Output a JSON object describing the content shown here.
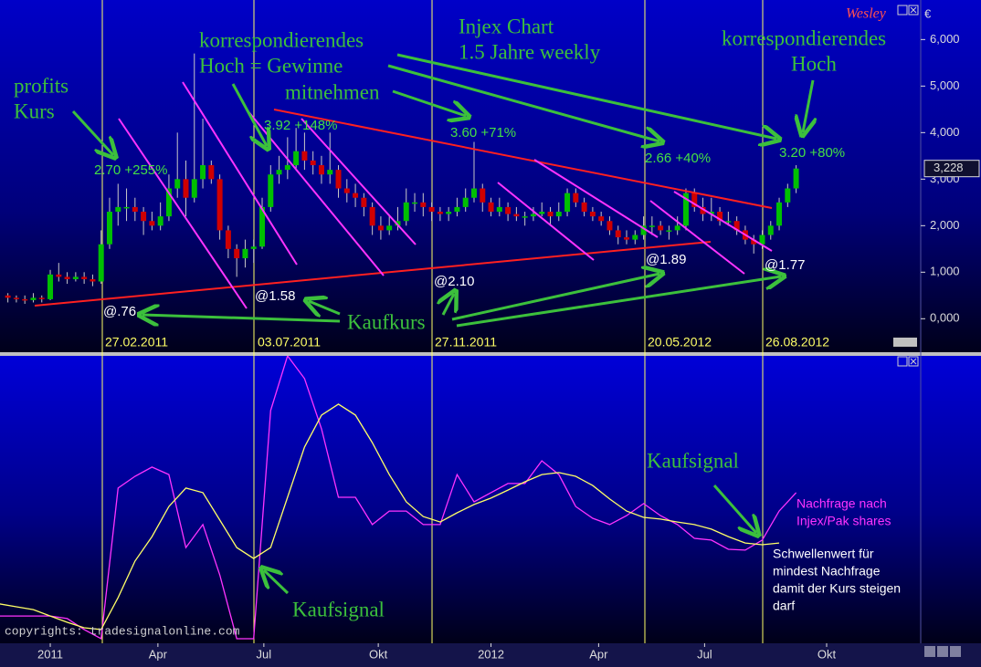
{
  "chart_data": [
    {
      "type": "candlestick",
      "title": [
        "Injex Chart",
        "1.5 Jahre weekly"
      ],
      "watermark": "Wesley",
      "currency": "€",
      "up_color": "#00c000",
      "down_color": "#d00000",
      "wick_color": "#c8c8c8",
      "x": [
        -5,
        -4,
        -3,
        -2,
        -1,
        0,
        1,
        2,
        3,
        4,
        5,
        6,
        7,
        8,
        9,
        10,
        11,
        12,
        13,
        14,
        15,
        16,
        17,
        18,
        19,
        20,
        21,
        22,
        23,
        24,
        25,
        26,
        27,
        28,
        29,
        30,
        31,
        32,
        33,
        34,
        35,
        36,
        37,
        38,
        39,
        40,
        41,
        42,
        43,
        44,
        45,
        46,
        47,
        48,
        49,
        50,
        51,
        52,
        53,
        54,
        55,
        56,
        57,
        58,
        59,
        60,
        61,
        62,
        63,
        64,
        65,
        66,
        67,
        68,
        69,
        70,
        71,
        72,
        73,
        74,
        75,
        76,
        77,
        78,
        79,
        80,
        81,
        82,
        83,
        84,
        85,
        86,
        87,
        88
      ],
      "candles": [
        [
          0.5,
          0.55,
          0.35,
          0.45
        ],
        [
          0.45,
          0.5,
          0.35,
          0.42
        ],
        [
          0.42,
          0.5,
          0.32,
          0.4
        ],
        [
          0.4,
          0.55,
          0.35,
          0.45
        ],
        [
          0.45,
          0.5,
          0.35,
          0.42
        ],
        [
          0.42,
          1.05,
          0.4,
          0.95
        ],
        [
          0.95,
          1.2,
          0.8,
          0.9
        ],
        [
          0.9,
          1.0,
          0.75,
          0.85
        ],
        [
          0.85,
          1.0,
          0.8,
          0.9
        ],
        [
          0.9,
          1.0,
          0.75,
          0.85
        ],
        [
          0.85,
          0.95,
          0.7,
          0.8
        ],
        [
          0.8,
          1.9,
          0.75,
          1.6
        ],
        [
          1.6,
          2.6,
          1.5,
          2.3
        ],
        [
          2.3,
          2.9,
          2.0,
          2.4
        ],
        [
          2.4,
          2.8,
          2.1,
          2.4
        ],
        [
          2.4,
          2.6,
          2.1,
          2.3
        ],
        [
          2.3,
          2.4,
          1.8,
          2.1
        ],
        [
          2.1,
          2.3,
          1.9,
          2.0
        ],
        [
          2.0,
          2.5,
          1.9,
          2.2
        ],
        [
          2.2,
          3.1,
          2.1,
          2.8
        ],
        [
          2.8,
          4.0,
          2.6,
          3.0
        ],
        [
          3.0,
          3.4,
          2.2,
          2.6
        ],
        [
          2.6,
          5.7,
          2.5,
          3.0
        ],
        [
          3.0,
          4.3,
          2.8,
          3.3
        ],
        [
          3.3,
          3.4,
          2.9,
          3.0
        ],
        [
          3.0,
          3.1,
          1.7,
          1.9
        ],
        [
          1.9,
          2.0,
          1.3,
          1.5
        ],
        [
          1.5,
          1.6,
          0.9,
          1.3
        ],
        [
          1.3,
          1.7,
          1.1,
          1.5
        ],
        [
          1.5,
          1.7,
          1.2,
          1.55
        ],
        [
          1.55,
          2.6,
          1.5,
          2.4
        ],
        [
          2.4,
          3.3,
          2.3,
          3.1
        ],
        [
          3.1,
          3.5,
          2.9,
          3.2
        ],
        [
          3.2,
          3.9,
          3.0,
          3.3
        ],
        [
          3.3,
          4.1,
          3.2,
          3.6
        ],
        [
          3.6,
          4.0,
          3.2,
          3.4
        ],
        [
          3.4,
          3.6,
          3.1,
          3.3
        ],
        [
          3.3,
          3.5,
          2.9,
          3.1
        ],
        [
          3.1,
          4.0,
          2.9,
          3.2
        ],
        [
          3.2,
          3.3,
          2.6,
          2.8
        ],
        [
          2.8,
          3.0,
          2.5,
          2.7
        ],
        [
          2.7,
          2.9,
          2.4,
          2.6
        ],
        [
          2.6,
          2.7,
          2.2,
          2.4
        ],
        [
          2.4,
          2.5,
          1.8,
          2.0
        ],
        [
          2.0,
          2.2,
          1.7,
          1.9
        ],
        [
          1.9,
          2.2,
          1.8,
          2.0
        ],
        [
          2.0,
          2.4,
          1.9,
          2.1
        ],
        [
          2.1,
          2.8,
          2.0,
          2.5
        ],
        [
          2.5,
          2.7,
          2.3,
          2.5
        ],
        [
          2.5,
          2.7,
          2.2,
          2.4
        ],
        [
          2.4,
          2.5,
          2.1,
          2.3
        ],
        [
          2.3,
          2.4,
          2.1,
          2.25
        ],
        [
          2.25,
          2.4,
          2.1,
          2.3
        ],
        [
          2.3,
          2.6,
          2.2,
          2.4
        ],
        [
          2.4,
          2.8,
          2.3,
          2.6
        ],
        [
          2.6,
          3.8,
          2.5,
          2.8
        ],
        [
          2.8,
          2.9,
          2.3,
          2.5
        ],
        [
          2.5,
          2.6,
          2.2,
          2.3
        ],
        [
          2.3,
          2.6,
          2.2,
          2.4
        ],
        [
          2.4,
          2.5,
          2.1,
          2.25
        ],
        [
          2.25,
          2.4,
          2.1,
          2.2
        ],
        [
          2.2,
          2.3,
          2.0,
          2.2
        ],
        [
          2.2,
          2.4,
          2.1,
          2.25
        ],
        [
          2.25,
          2.5,
          2.2,
          2.3
        ],
        [
          2.3,
          2.4,
          2.0,
          2.2
        ],
        [
          2.2,
          2.5,
          2.1,
          2.3
        ],
        [
          2.3,
          2.8,
          2.2,
          2.7
        ],
        [
          2.7,
          2.8,
          2.4,
          2.5
        ],
        [
          2.5,
          2.6,
          2.2,
          2.3
        ],
        [
          2.3,
          2.4,
          2.1,
          2.2
        ],
        [
          2.2,
          2.3,
          2.0,
          2.1
        ],
        [
          2.1,
          2.2,
          1.8,
          1.9
        ],
        [
          1.9,
          2.0,
          1.6,
          1.75
        ],
        [
          1.75,
          1.9,
          1.6,
          1.7
        ],
        [
          1.7,
          1.9,
          1.6,
          1.8
        ],
        [
          1.8,
          2.2,
          1.7,
          2.0
        ],
        [
          2.0,
          2.2,
          1.8,
          2.0
        ],
        [
          2.0,
          2.1,
          1.8,
          1.9
        ],
        [
          1.9,
          2.0,
          1.7,
          1.9
        ],
        [
          1.9,
          2.2,
          1.8,
          2.0
        ],
        [
          2.0,
          2.8,
          1.9,
          2.7
        ],
        [
          2.7,
          2.8,
          2.3,
          2.4
        ],
        [
          2.4,
          2.6,
          2.1,
          2.25
        ],
        [
          2.25,
          2.6,
          2.1,
          2.3
        ],
        [
          2.3,
          2.4,
          2.0,
          2.1
        ],
        [
          2.1,
          2.3,
          2.0,
          2.1
        ],
        [
          2.1,
          2.2,
          1.8,
          1.9
        ],
        [
          1.9,
          2.0,
          1.6,
          1.7
        ],
        [
          1.7,
          1.8,
          1.4,
          1.6
        ],
        [
          1.6,
          1.9,
          1.5,
          1.8
        ],
        [
          1.8,
          2.1,
          1.7,
          2.0
        ],
        [
          2.0,
          2.6,
          1.9,
          2.5
        ],
        [
          2.5,
          2.9,
          2.4,
          2.8
        ],
        [
          2.8,
          3.3,
          2.7,
          3.228
        ]
      ],
      "last_label": "3,228",
      "xlim": [
        -5.93,
        102.7
      ],
      "ylim": [
        -0.7,
        6.85
      ],
      "yticks": [
        {
          "value": 6,
          "label": "6,000"
        },
        {
          "value": 5,
          "label": "5,000"
        },
        {
          "value": 4,
          "label": "4,000"
        },
        {
          "value": 3,
          "label": "3,000"
        },
        {
          "value": 2,
          "label": "2,000"
        },
        {
          "value": 1,
          "label": "1,000"
        },
        {
          "value": 0,
          "label": "0,000"
        }
      ],
      "annotations": {
        "profits": [
          "profits",
          "Kurs"
        ],
        "hoch_left": [
          "korrespondierendes",
          "Hoch = Gewinne",
          "mitnehmen"
        ],
        "hoch_right": [
          "korrespondierendes",
          "Hoch"
        ],
        "kaufkurs": "Kaufkurs",
        "gains": [
          "2.70 +255%",
          "3.92 +148%",
          "3.60 +71%",
          "2.66 +40%",
          "3.20 +80%"
        ],
        "buy_prices": [
          "@.76",
          "@1.58",
          "@2.10",
          "@1.89",
          "@1.77"
        ],
        "dates": [
          "27.02.2011",
          "03.07.2011",
          "27.11.2011",
          "20.05.2012",
          "26.08.2012"
        ]
      }
    },
    {
      "type": "line",
      "x": [
        -6,
        -4,
        -2,
        0,
        2,
        4,
        6,
        8,
        10,
        12,
        14,
        16,
        18,
        20,
        22,
        24,
        26,
        28,
        30,
        32,
        34,
        36,
        38,
        40,
        42,
        44,
        46,
        48,
        50,
        52,
        54,
        56,
        58,
        60,
        62,
        64,
        66,
        68,
        70,
        72,
        74,
        76,
        78,
        80,
        82,
        84,
        86,
        88
      ],
      "series": [
        {
          "color": "#ff33ff",
          "values": [
            9.5,
            9.5,
            9.5,
            9.5,
            8.6,
            4.8,
            1.6,
            54,
            58.1,
            61.3,
            58.7,
            33.3,
            41.3,
            23.8,
            1.6,
            1.6,
            81,
            100,
            92.1,
            74.6,
            50.8,
            50.8,
            41.3,
            46,
            46,
            41.3,
            41.3,
            58.7,
            49.2,
            52.4,
            55.6,
            55.6,
            63.5,
            58.7,
            47.6,
            43.5,
            41.3,
            44.4,
            48.6,
            44.4,
            41.3,
            36.5,
            35.9,
            32.7,
            32.4,
            35.9,
            46,
            52.4
          ]
        },
        {
          "color": "#ffff66",
          "values": [
            13.7,
            12.7,
            11.7,
            9.5,
            7.3,
            5.4,
            4.8,
            15.9,
            28.6,
            37.1,
            47.6,
            54,
            52.4,
            42.9,
            33.3,
            29.5,
            33.3,
            50.8,
            68.3,
            79.4,
            83.2,
            79.4,
            69.8,
            58.7,
            49.2,
            44.1,
            42.2,
            45.4,
            48.3,
            50.5,
            53.3,
            56.2,
            58.7,
            59.4,
            58.1,
            54.9,
            50.2,
            46,
            43.8,
            43.2,
            42.2,
            41.3,
            39.7,
            37.1,
            34.9,
            34.3,
            34.9,
            null
          ]
        }
      ],
      "xlim": [
        -5.93,
        102.7
      ],
      "ylim": [
        0,
        100
      ],
      "xticks": [
        {
          "value": 0,
          "label": "2011"
        },
        {
          "value": 12.7,
          "label": "Apr"
        },
        {
          "value": 25.2,
          "label": "Jul"
        },
        {
          "value": 38.7,
          "label": "Okt"
        },
        {
          "value": 52,
          "label": "2012"
        },
        {
          "value": 64.7,
          "label": "Apr"
        },
        {
          "value": 77.2,
          "label": "Jul"
        },
        {
          "value": 91.6,
          "label": "Okt"
        }
      ],
      "annotations": {
        "kaufsignal": [
          "Kaufsignal",
          "Kaufsignal"
        ],
        "demand": [
          "Nachfrage nach",
          "Injex/Pak shares"
        ],
        "threshold": [
          "Schwellenwert für",
          "mindest Nachfrage",
          "damit der Kurs steigen",
          "darf"
        ]
      },
      "source": "copyrights: tradesignalonline.com"
    }
  ]
}
